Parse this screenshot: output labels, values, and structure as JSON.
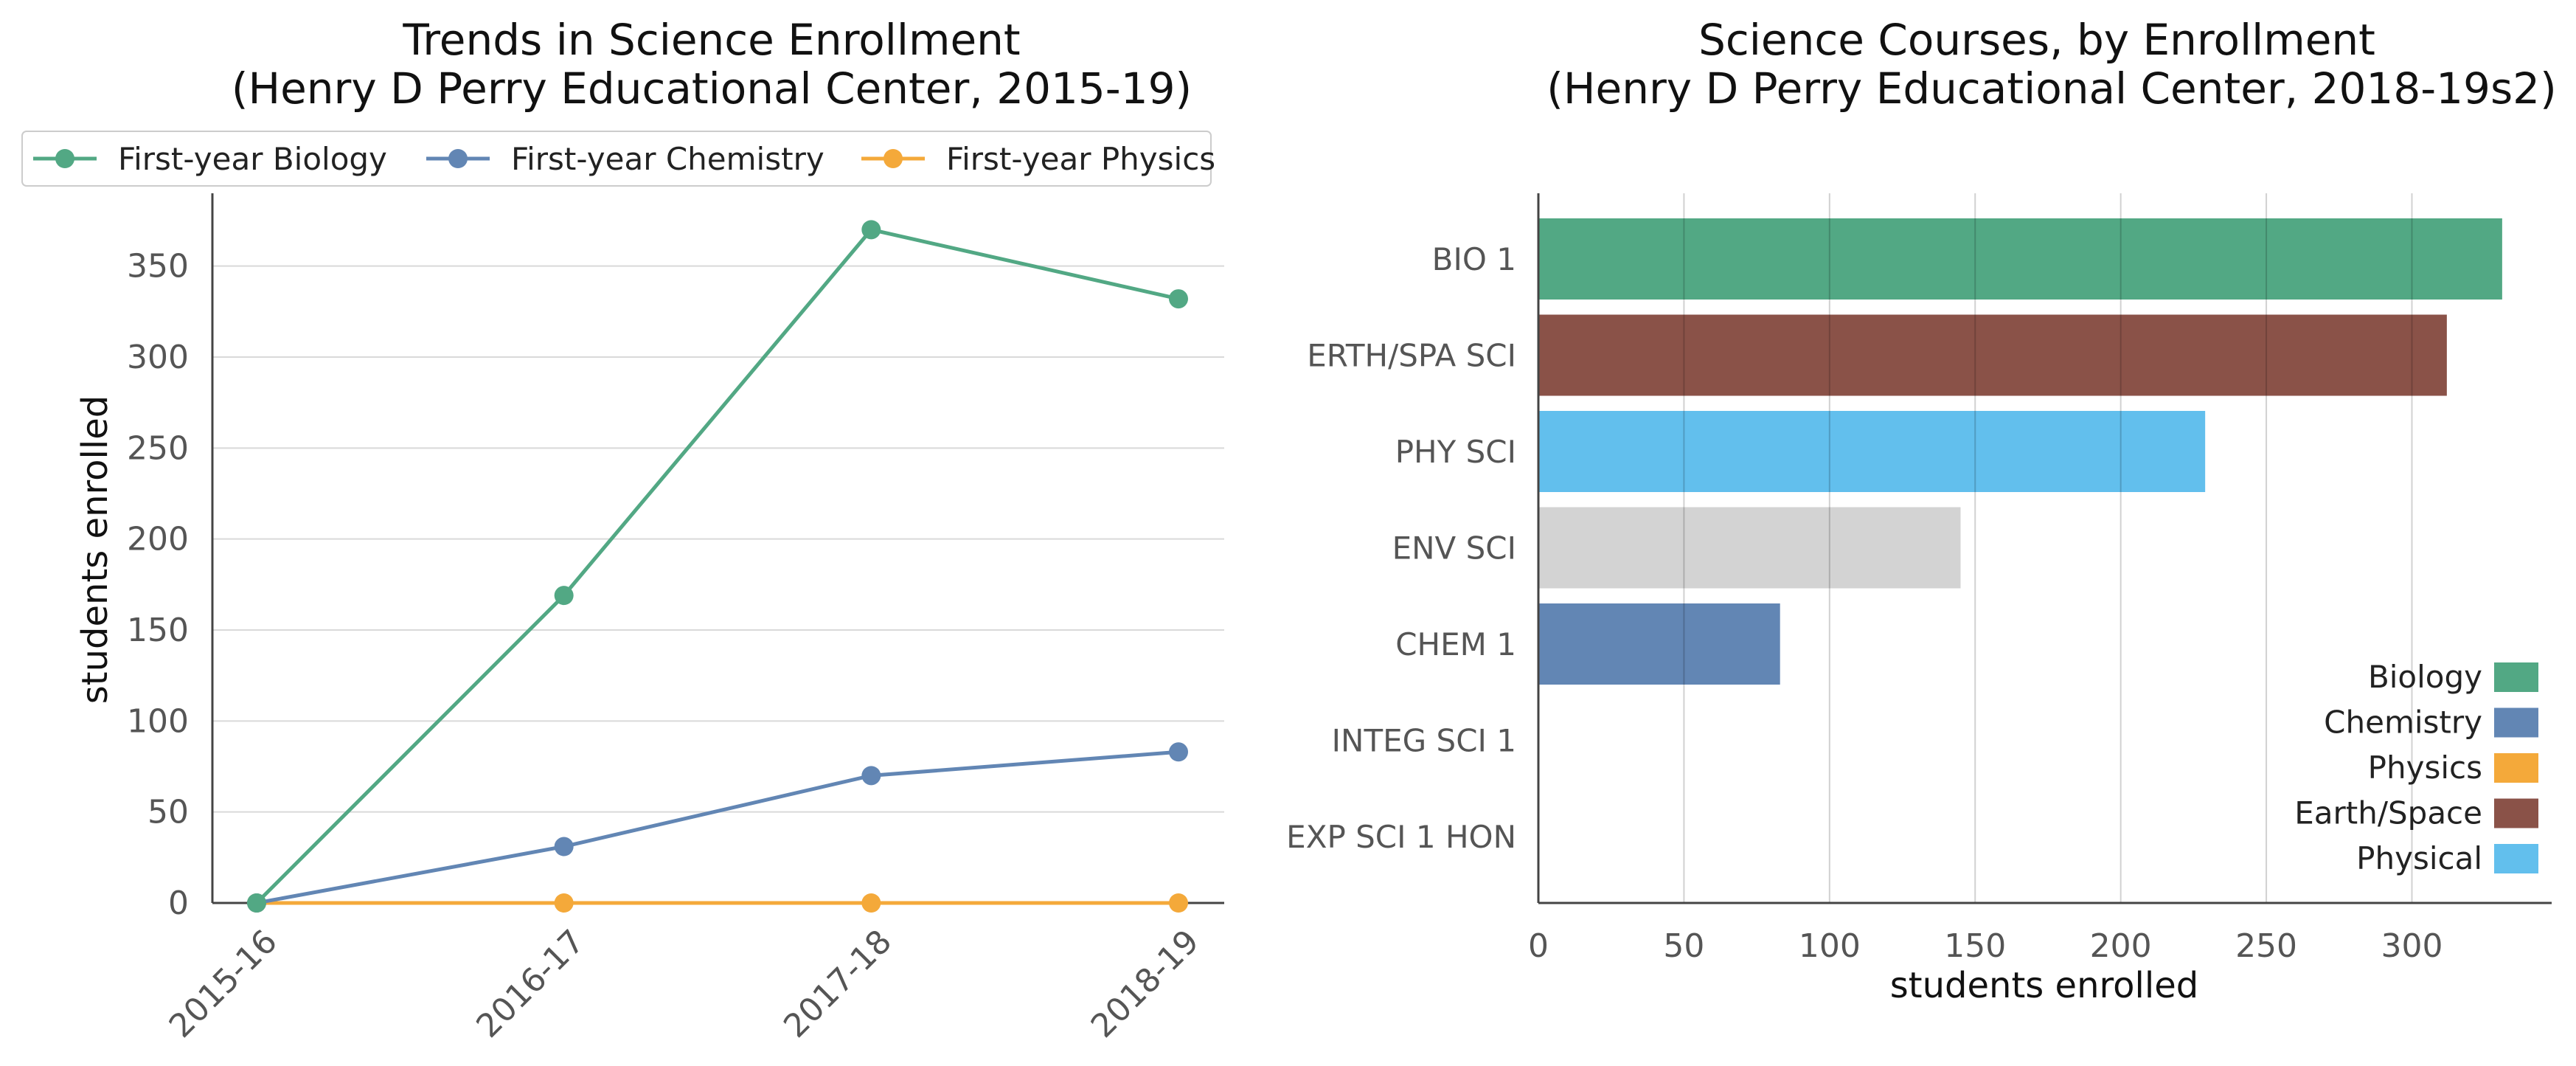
{
  "chart_data": [
    {
      "type": "line",
      "title_line1": "Trends in Science Enrollment",
      "title_line2": "(Henry D Perry Educational Center, 2015-19)",
      "xlabel": "",
      "ylabel": "students enrolled",
      "categories": [
        "2015-16",
        "2016-17",
        "2017-18",
        "2018-19"
      ],
      "ylim": [
        0,
        390
      ],
      "yticks": [
        0,
        50,
        100,
        150,
        200,
        250,
        300,
        350
      ],
      "grid": "horizontal",
      "legend": "top",
      "series": [
        {
          "name": "First-year Biology",
          "color": "#52a884",
          "values": [
            0,
            169,
            370,
            332
          ]
        },
        {
          "name": "First-year Chemistry",
          "color": "#6286b4",
          "values": [
            0,
            31,
            70,
            83
          ]
        },
        {
          "name": "First-year Physics",
          "color": "#f4a93a",
          "values": [
            0,
            0,
            0,
            0
          ]
        }
      ]
    },
    {
      "type": "bar",
      "orientation": "horizontal",
      "title_line1": "Science Courses, by Enrollment",
      "title_line2": "(Henry D Perry Educational Center, 2018-19s2)",
      "xlabel": "students enrolled",
      "ylabel": "",
      "xlim": [
        0,
        348
      ],
      "xticks": [
        0,
        50,
        100,
        150,
        200,
        250,
        300
      ],
      "grid": "vertical",
      "legend": "bottom-right",
      "categories": [
        "BIO 1",
        "ERTH/SPA SCI",
        "PHY SCI",
        "ENV SCI",
        "CHEM 1",
        "INTEG SCI 1",
        "EXP SCI 1 HON"
      ],
      "values": [
        331,
        312,
        229,
        145,
        83,
        0,
        0
      ],
      "bar_colors": [
        "#52a884",
        "#8a5248",
        "#62bfed",
        "#d3d3d3",
        "#6286b4",
        "#d3d3d3",
        "#d3d3d3"
      ],
      "legend_items": [
        {
          "name": "Biology",
          "color": "#52a884"
        },
        {
          "name": "Chemistry",
          "color": "#6286b4"
        },
        {
          "name": "Physics",
          "color": "#f4a93a"
        },
        {
          "name": "Earth/Space",
          "color": "#8a5248"
        },
        {
          "name": "Physical",
          "color": "#62bfed"
        }
      ]
    }
  ]
}
